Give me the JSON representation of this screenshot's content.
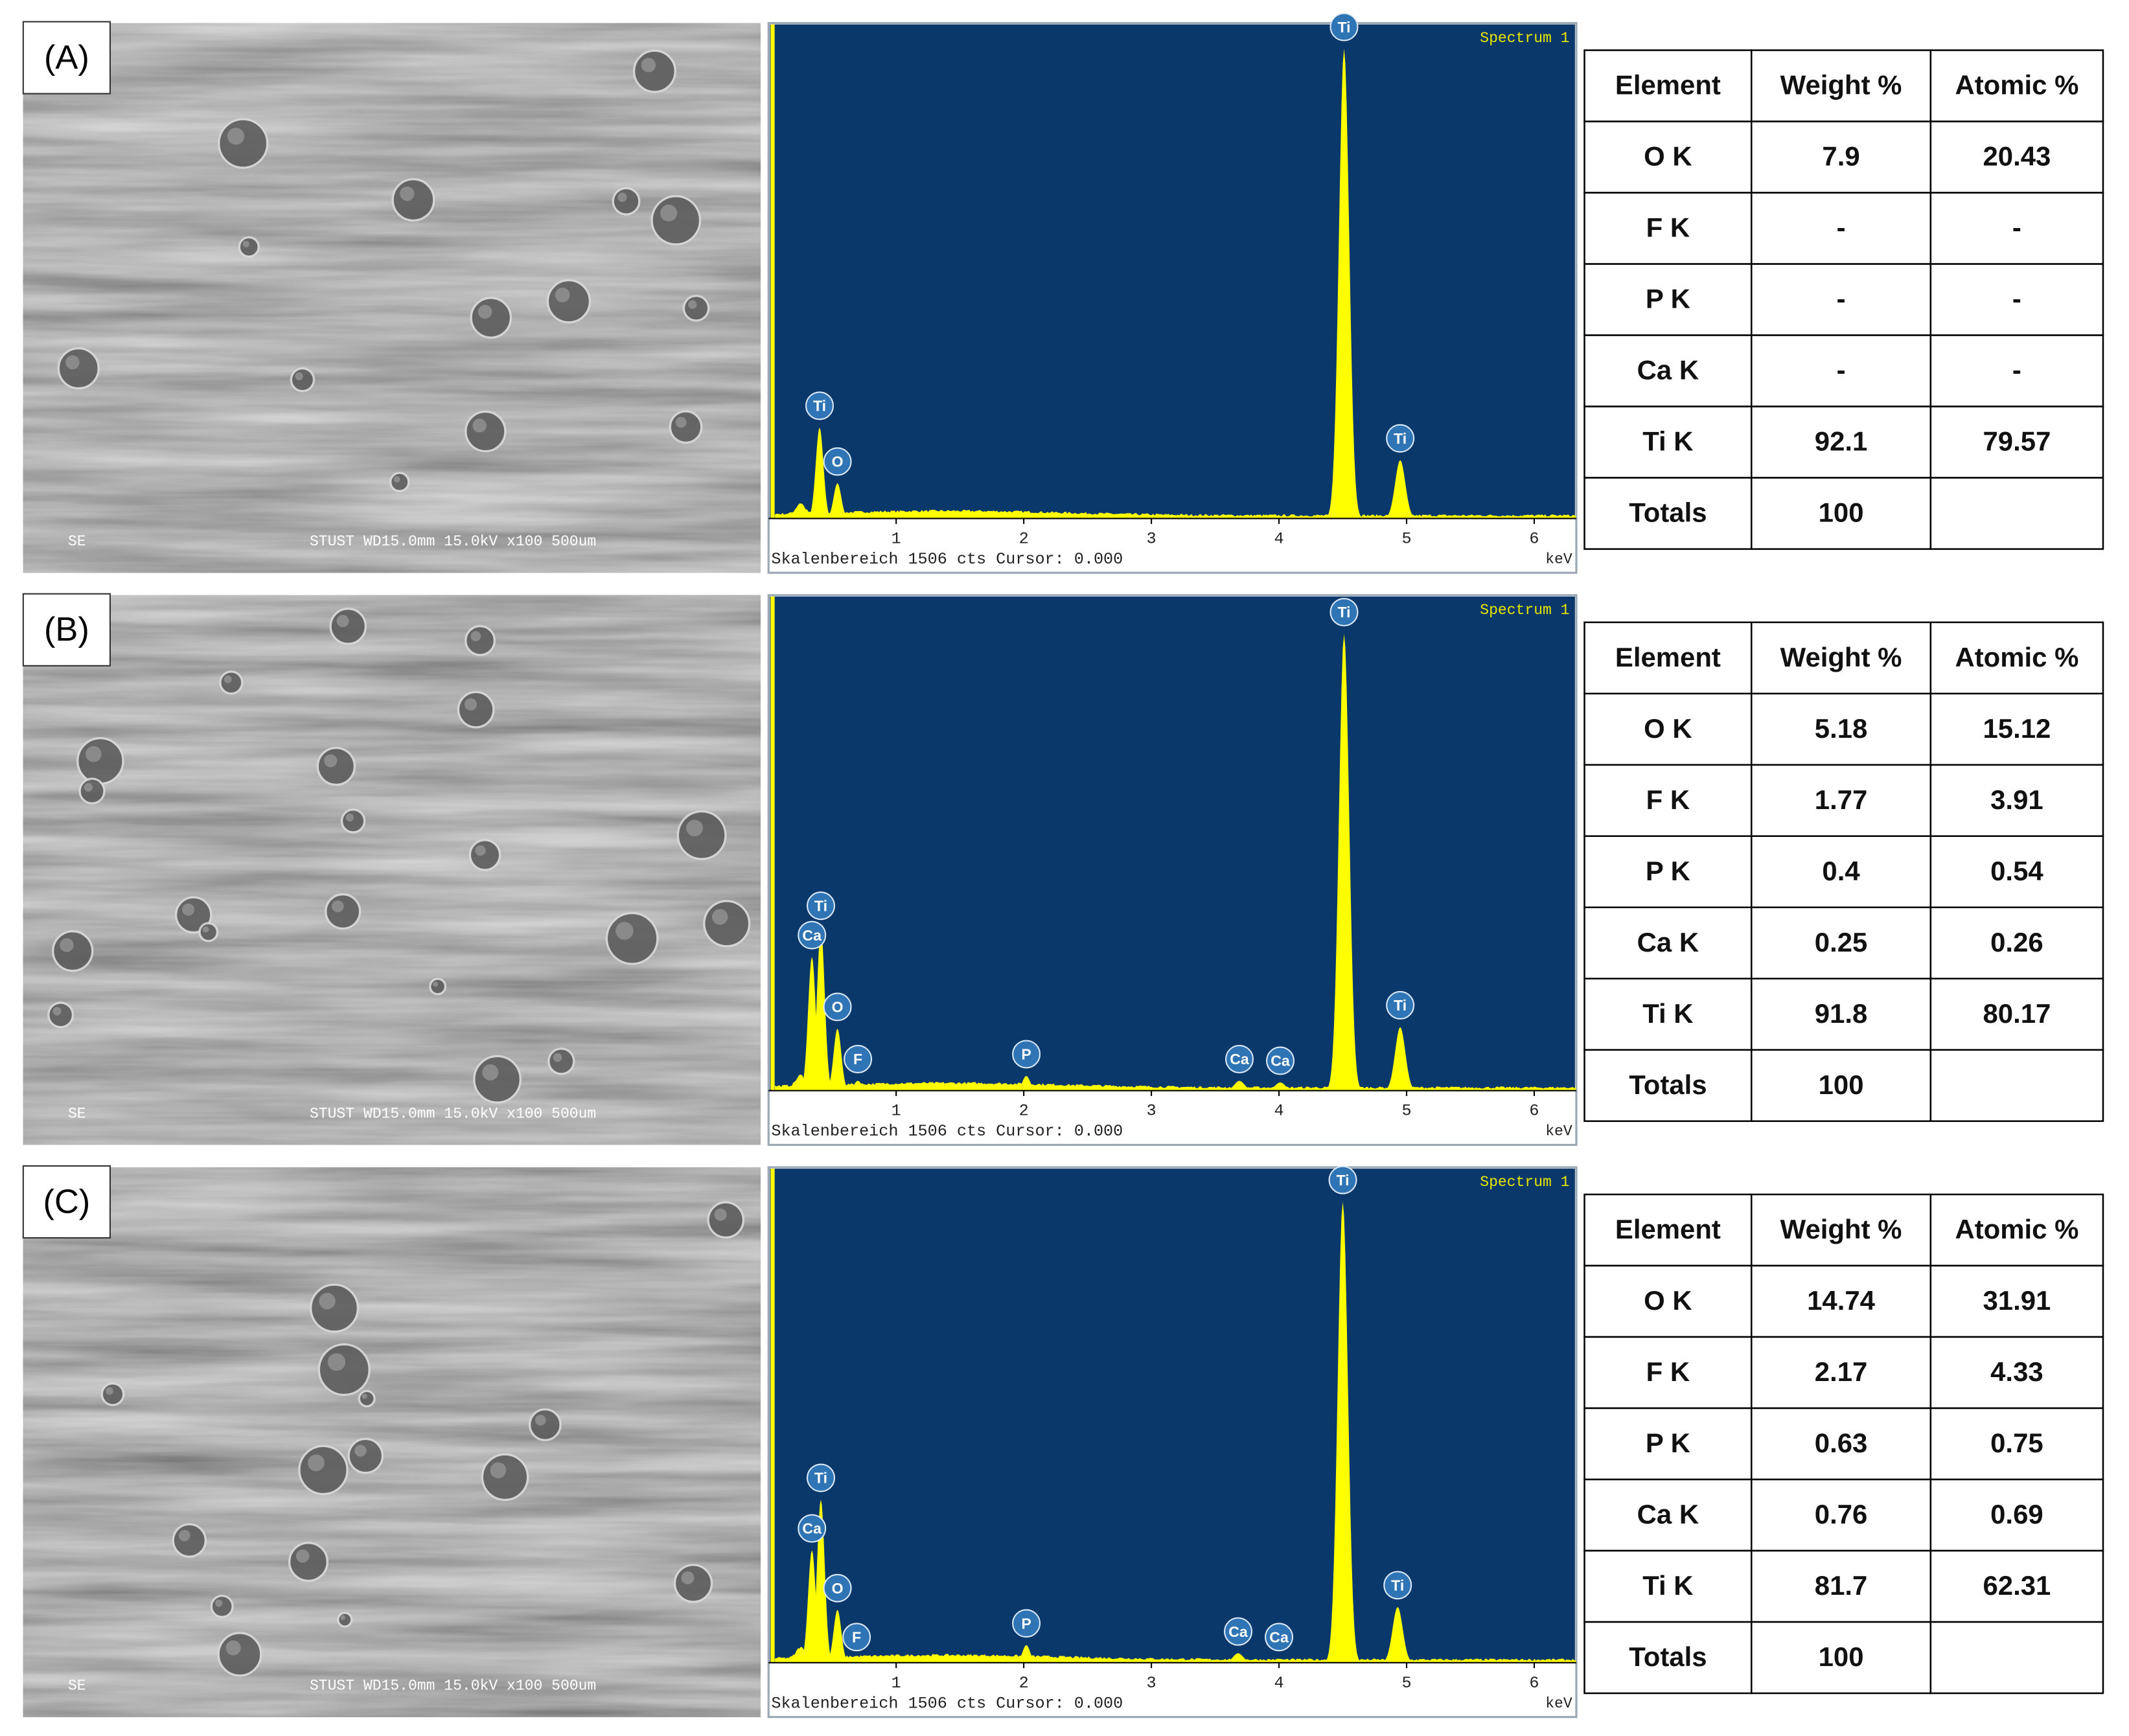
{
  "panels": [
    {
      "label": "(A)",
      "sem": {
        "detector": "SE",
        "info": "STUST  WD15.0mm 15.0kV x100  500um"
      },
      "spectrum": {
        "title": "Spectrum 1",
        "footer": "Skalenbereich 1506 cts Cursor: 0.000",
        "xunit": "keV",
        "xlim": [
          0,
          6.33
        ],
        "xticks": [
          1,
          2,
          3,
          4,
          5,
          6
        ],
        "ylim": [
          0,
          1506
        ],
        "peaks": [
          {
            "label": "Ti",
            "energy": 0.4,
            "counts": 279
          },
          {
            "label": "O",
            "energy": 0.54,
            "counts": 108
          },
          {
            "label": "Ti",
            "energy": 4.51,
            "counts": 1440
          },
          {
            "label": "Ti",
            "energy": 4.95,
            "counts": 179
          }
        ]
      },
      "table": {
        "header": [
          "Element",
          "Weight %",
          "Atomic %"
        ],
        "rows": [
          [
            "O K",
            7.9,
            20.43
          ],
          [
            "F K",
            "-",
            "-"
          ],
          [
            "P K",
            "-",
            "-"
          ],
          [
            "Ca K",
            "-",
            "-"
          ],
          [
            "Ti K",
            92.1,
            79.57
          ],
          [
            "Totals",
            100
          ]
        ]
      }
    },
    {
      "label": "(B)",
      "sem": {
        "detector": "SE",
        "info": "STUST  WD15.0mm 15.0kV x100  500um"
      },
      "spectrum": {
        "title": "Spectrum 1",
        "footer": "Skalenbereich 1506 cts Cursor: 0.000",
        "xunit": "keV",
        "xlim": [
          0,
          6.33
        ],
        "xticks": [
          1,
          2,
          3,
          4,
          5,
          6
        ],
        "ylim": [
          0,
          1506
        ],
        "peaks": [
          {
            "label": "Ti",
            "energy": 0.41,
            "counts": 500
          },
          {
            "label": "Ca",
            "energy": 0.34,
            "counts": 410
          },
          {
            "label": "O",
            "energy": 0.54,
            "counts": 190
          },
          {
            "label": "F",
            "energy": 0.7,
            "counts": 30
          },
          {
            "label": "P",
            "energy": 2.02,
            "counts": 45
          },
          {
            "label": "Ca",
            "energy": 3.69,
            "counts": 30
          },
          {
            "label": "Ca",
            "energy": 4.01,
            "counts": 25
          },
          {
            "label": "Ti",
            "energy": 4.51,
            "counts": 1400
          },
          {
            "label": "Ti",
            "energy": 4.95,
            "counts": 195
          }
        ]
      },
      "table": {
        "header": [
          "Element",
          "Weight %",
          "Atomic %"
        ],
        "rows": [
          [
            "O K",
            5.18,
            15.12
          ],
          [
            "F K",
            1.77,
            3.91
          ],
          [
            "P K",
            0.4,
            0.54
          ],
          [
            "Ca K",
            0.25,
            0.26
          ],
          [
            "Ti K",
            91.8,
            80.17
          ],
          [
            "Totals",
            100
          ]
        ]
      }
    },
    {
      "label": "(C)",
      "sem": {
        "detector": "SE",
        "info": "STUST  WD15.0mm 15.0kV x100  500um"
      },
      "spectrum": {
        "title": "Spectrum 1",
        "footer": "Skalenbereich 1506 cts Cursor: 0.000",
        "xunit": "keV",
        "xlim": [
          0,
          6.33
        ],
        "xticks": [
          1,
          2,
          3,
          4,
          5,
          6
        ],
        "ylim": [
          0,
          1506
        ],
        "peaks": [
          {
            "label": "Ti",
            "energy": 0.41,
            "counts": 500
          },
          {
            "label": "Ca",
            "energy": 0.34,
            "counts": 345
          },
          {
            "label": "O",
            "energy": 0.54,
            "counts": 162
          },
          {
            "label": "F",
            "energy": 0.69,
            "counts": 12
          },
          {
            "label": "P",
            "energy": 2.02,
            "counts": 54
          },
          {
            "label": "Ca",
            "energy": 3.68,
            "counts": 29
          },
          {
            "label": "Ca",
            "energy": 4.0,
            "counts": 12
          },
          {
            "label": "Ti",
            "energy": 4.5,
            "counts": 1413
          },
          {
            "label": "Ti",
            "energy": 4.93,
            "counts": 171
          }
        ]
      },
      "table": {
        "header": [
          "Element",
          "Weight %",
          "Atomic %"
        ],
        "rows": [
          [
            "O K",
            14.74,
            31.91
          ],
          [
            "F K",
            2.17,
            4.33
          ],
          [
            "P K",
            0.63,
            0.75
          ],
          [
            "Ca K",
            0.76,
            0.69
          ],
          [
            "Ti K",
            81.7,
            62.31
          ],
          [
            "Totals",
            100
          ]
        ]
      }
    }
  ]
}
